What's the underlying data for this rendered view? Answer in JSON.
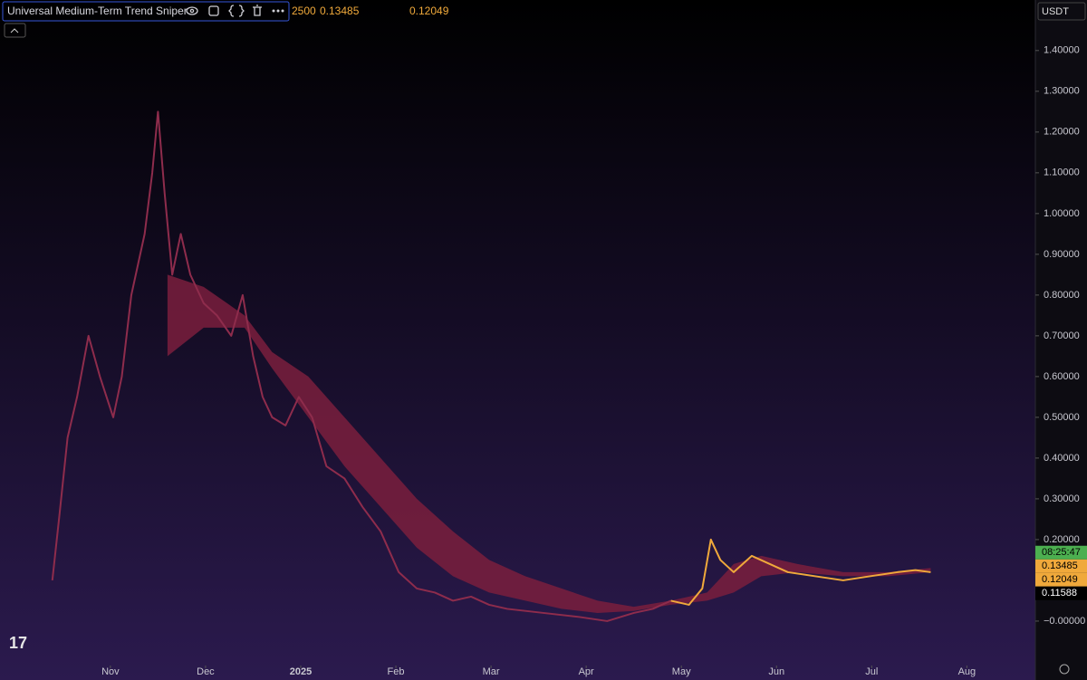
{
  "chart_data": {
    "type": "line",
    "indicator": "Universal Medium-Term Trend Sniper",
    "header_values": [
      2500,
      0.13485,
      0.12049
    ],
    "currency": "USDT",
    "countdown": "08:25:47",
    "price_labels": [
      {
        "value": 0.13485,
        "color": "#f0a93b"
      },
      {
        "value": 0.12049,
        "color": "#f0a93b"
      },
      {
        "value": 0.11588,
        "color": "#000000"
      }
    ],
    "x": [
      0.39,
      0.46,
      0.55,
      0.65,
      0.77,
      0.89,
      1.03,
      1.12,
      1.22,
      1.36,
      1.44,
      1.5,
      1.57,
      1.65,
      1.74,
      1.84,
      1.98,
      2.12,
      2.27,
      2.39,
      2.5,
      2.6,
      2.7,
      2.84,
      2.98,
      3.12,
      3.27,
      3.46,
      3.65,
      3.84,
      4.03,
      4.22,
      4.41,
      4.6,
      4.79,
      4.98,
      5.17,
      5.55,
      5.93,
      6.22,
      6.5,
      6.7,
      6.89,
      7.08,
      7.22,
      7.31,
      7.41,
      7.55,
      7.74,
      7.93,
      8.12,
      8.41,
      8.7,
      8.98,
      9.27,
      9.46,
      9.62
    ],
    "series": [
      {
        "color": "#8e2c4c",
        "values": [
          0.1,
          0.25,
          0.45,
          0.55,
          0.7,
          0.6,
          0.5,
          0.6,
          0.8,
          0.95,
          1.1,
          1.25,
          1.05,
          0.85,
          0.95,
          0.85,
          0.78,
          0.75,
          0.7,
          0.8,
          0.65,
          0.55,
          0.5,
          0.48,
          0.55,
          0.5,
          0.38,
          0.35,
          0.28,
          0.22,
          0.12,
          0.08,
          0.07,
          0.05,
          0.06,
          0.04,
          0.03,
          0.02,
          0.01,
          0.0,
          0.02,
          0.03,
          0.05,
          null,
          null,
          null,
          null,
          null,
          null,
          null,
          null,
          null,
          null,
          null,
          null,
          null,
          null
        ]
      },
      {
        "color": "#f0a93b",
        "values": [
          null,
          null,
          null,
          null,
          null,
          null,
          null,
          null,
          null,
          null,
          null,
          null,
          null,
          null,
          null,
          null,
          null,
          null,
          null,
          null,
          null,
          null,
          null,
          null,
          null,
          null,
          null,
          null,
          null,
          null,
          null,
          null,
          null,
          null,
          null,
          null,
          null,
          null,
          null,
          null,
          null,
          null,
          0.05,
          0.04,
          0.08,
          0.2,
          0.15,
          0.12,
          0.16,
          0.14,
          0.12,
          0.11,
          0.1,
          0.11,
          0.12,
          0.125,
          0.12
        ]
      }
    ],
    "band": {
      "color": "#7a1f3d",
      "x": [
        1.6,
        1.98,
        2.41,
        2.7,
        3.08,
        3.46,
        3.84,
        4.22,
        4.6,
        4.98,
        5.36,
        5.74,
        6.12,
        6.5,
        6.89,
        7.27,
        7.55,
        7.84,
        8.22,
        8.7,
        9.17,
        9.62
      ],
      "upper": [
        0.85,
        0.82,
        0.75,
        0.66,
        0.6,
        0.5,
        0.4,
        0.3,
        0.22,
        0.15,
        0.11,
        0.08,
        0.05,
        0.035,
        0.05,
        0.07,
        0.14,
        0.16,
        0.14,
        0.12,
        0.12,
        0.13
      ],
      "lower": [
        0.65,
        0.72,
        0.72,
        0.62,
        0.5,
        0.38,
        0.28,
        0.18,
        0.11,
        0.07,
        0.05,
        0.03,
        0.02,
        0.025,
        0.04,
        0.05,
        0.07,
        0.11,
        0.12,
        0.11,
        0.11,
        0.12
      ]
    },
    "xlim": [
      -0.16,
      10.72
    ],
    "xticks": [
      {
        "value": 1,
        "label": "Nov"
      },
      {
        "value": 2,
        "label": "Dec"
      },
      {
        "value": 3,
        "label": "2025"
      },
      {
        "value": 4,
        "label": "Feb"
      },
      {
        "value": 5,
        "label": "Mar"
      },
      {
        "value": 6,
        "label": "Apr"
      },
      {
        "value": 7,
        "label": "May"
      },
      {
        "value": 8,
        "label": "Jun"
      },
      {
        "value": 9,
        "label": "Jul"
      },
      {
        "value": 10,
        "label": "Aug"
      }
    ],
    "ylim": [
      -0.109,
      1.524
    ],
    "yticks": [
      {
        "value": 1.4,
        "label": "1.40000"
      },
      {
        "value": 1.3,
        "label": "1.30000"
      },
      {
        "value": 1.2,
        "label": "1.20000"
      },
      {
        "value": 1.1,
        "label": "1.10000"
      },
      {
        "value": 1.0,
        "label": "1.00000"
      },
      {
        "value": 0.9,
        "label": "0.90000"
      },
      {
        "value": 0.8,
        "label": "0.80000"
      },
      {
        "value": 0.7,
        "label": "0.70000"
      },
      {
        "value": 0.6,
        "label": "0.60000"
      },
      {
        "value": 0.5,
        "label": "0.50000"
      },
      {
        "value": 0.4,
        "label": "0.40000"
      },
      {
        "value": 0.3,
        "label": "0.30000"
      },
      {
        "value": 0.2,
        "label": "0.20000"
      },
      {
        "value": 0,
        "label": "−0.00000"
      }
    ]
  }
}
